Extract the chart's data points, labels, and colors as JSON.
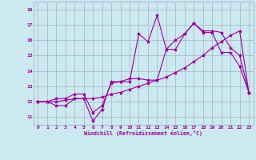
{
  "xlabel": "Windchill (Refroidissement éolien,°C)",
  "bg_color": "#cce8f0",
  "line_color": "#990099",
  "grid_color": "#99aabb",
  "xlim": [
    -0.5,
    23.5
  ],
  "ylim": [
    10.5,
    18.5
  ],
  "xticks": [
    0,
    1,
    2,
    3,
    4,
    5,
    6,
    7,
    8,
    9,
    10,
    11,
    12,
    13,
    14,
    15,
    16,
    17,
    18,
    19,
    20,
    21,
    22,
    23
  ],
  "yticks": [
    11,
    12,
    13,
    14,
    15,
    16,
    17,
    18
  ],
  "series1_x": [
    0,
    1,
    2,
    3,
    4,
    5,
    6,
    7,
    8,
    9,
    10,
    11,
    12,
    13,
    14,
    15,
    16,
    17,
    18,
    19,
    20,
    21,
    22,
    23
  ],
  "series1_y": [
    12.0,
    12.0,
    11.75,
    11.75,
    12.2,
    12.2,
    10.75,
    11.5,
    13.3,
    13.3,
    13.3,
    16.4,
    15.9,
    17.6,
    15.4,
    15.4,
    16.4,
    17.1,
    16.5,
    16.5,
    15.2,
    15.2,
    14.3,
    12.6
  ],
  "series2_x": [
    0,
    1,
    2,
    3,
    4,
    5,
    6,
    7,
    8,
    9,
    10,
    11,
    12,
    13,
    14,
    15,
    16,
    17,
    18,
    19,
    20,
    21,
    22,
    23
  ],
  "series2_y": [
    12.0,
    12.0,
    12.0,
    12.1,
    12.2,
    12.2,
    12.2,
    12.3,
    12.5,
    12.6,
    12.8,
    13.0,
    13.2,
    13.4,
    13.6,
    13.9,
    14.2,
    14.6,
    15.0,
    15.5,
    15.9,
    16.3,
    16.6,
    12.6
  ],
  "series3_x": [
    0,
    1,
    2,
    3,
    4,
    5,
    6,
    7,
    8,
    9,
    10,
    11,
    12,
    13,
    14,
    15,
    16,
    17,
    18,
    19,
    20,
    21,
    22,
    23
  ],
  "series3_y": [
    12.0,
    12.0,
    12.2,
    12.2,
    12.5,
    12.5,
    11.3,
    11.75,
    13.2,
    13.3,
    13.5,
    13.5,
    13.4,
    13.4,
    15.4,
    16.0,
    16.4,
    17.1,
    16.6,
    16.6,
    16.5,
    15.5,
    15.0,
    12.6
  ]
}
